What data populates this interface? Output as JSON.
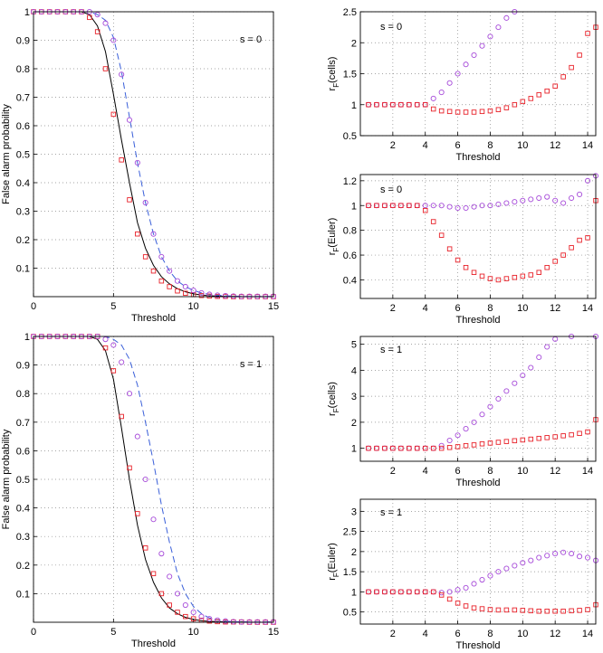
{
  "chart_data": [
    {
      "type": "line",
      "xlabel": "Threshold",
      "ylabel": "False alarm probability",
      "annotation": "s = 0",
      "xlim": [
        0,
        15
      ],
      "ylim": [
        0,
        1
      ],
      "xticks": [
        0,
        5,
        10,
        15
      ],
      "yticks": [
        0.1,
        0.2,
        0.3,
        0.4,
        0.5,
        0.6,
        0.7,
        0.8,
        0.9,
        1
      ],
      "grid": true,
      "x": [
        0,
        0.5,
        1,
        1.5,
        2,
        2.5,
        3,
        3.5,
        4,
        4.5,
        5,
        5.5,
        6,
        6.5,
        7,
        7.5,
        8,
        8.5,
        9,
        9.5,
        10,
        10.5,
        11,
        11.5,
        12,
        12.5,
        13,
        13.5,
        14,
        14.5,
        15
      ],
      "series": [
        {
          "style": "solid",
          "color": "#000000",
          "values": [
            1,
            1,
            1,
            1,
            1,
            1,
            1,
            0.99,
            0.95,
            0.86,
            0.71,
            0.55,
            0.4,
            0.26,
            0.17,
            0.11,
            0.07,
            0.045,
            0.028,
            0.017,
            0.01,
            0.006,
            0.003,
            0.002,
            0.001,
            0.001,
            0,
            0,
            0,
            0,
            0
          ]
        },
        {
          "style": "dashed",
          "color": "#3a5fd9",
          "values": [
            1,
            1,
            1,
            1,
            1,
            1,
            1,
            1,
            0.99,
            0.97,
            0.91,
            0.79,
            0.63,
            0.47,
            0.33,
            0.22,
            0.14,
            0.09,
            0.055,
            0.035,
            0.022,
            0.013,
            0.008,
            0.005,
            0.003,
            0.002,
            0.001,
            0.001,
            0.001,
            0.001,
            0.001
          ]
        },
        {
          "style": "square",
          "color": "#e8222a",
          "values": [
            1,
            1,
            1,
            1,
            1,
            1,
            1,
            0.98,
            0.93,
            0.8,
            0.64,
            0.48,
            0.34,
            0.22,
            0.14,
            0.09,
            0.055,
            0.035,
            0.02,
            0.012,
            0.007,
            0.004,
            0.002,
            0.001,
            0.001,
            0,
            0,
            0,
            0,
            0,
            0
          ]
        },
        {
          "style": "circle",
          "color": "#a64ad9",
          "values": [
            1,
            1,
            1,
            1,
            1,
            1,
            1,
            1,
            0.99,
            0.96,
            0.9,
            0.78,
            0.62,
            0.47,
            0.33,
            0.22,
            0.14,
            0.09,
            0.055,
            0.035,
            0.022,
            0.013,
            0.008,
            0.005,
            0.003,
            0.002,
            0.001,
            0.001,
            0.001,
            0.001,
            0.001
          ]
        }
      ]
    },
    {
      "type": "line",
      "xlabel": "Threshold",
      "ylabel": "False alarm probability",
      "annotation": "s = 1",
      "xlim": [
        0,
        15
      ],
      "ylim": [
        0,
        1
      ],
      "xticks": [
        0,
        5,
        10,
        15
      ],
      "yticks": [
        0.1,
        0.2,
        0.3,
        0.4,
        0.5,
        0.6,
        0.7,
        0.8,
        0.9,
        1
      ],
      "grid": true,
      "x": [
        0,
        0.5,
        1,
        1.5,
        2,
        2.5,
        3,
        3.5,
        4,
        4.5,
        5,
        5.5,
        6,
        6.5,
        7,
        7.5,
        8,
        8.5,
        9,
        9.5,
        10,
        10.5,
        11,
        11.5,
        12,
        12.5,
        13,
        13.5,
        14,
        14.5,
        15
      ],
      "series": [
        {
          "style": "solid",
          "color": "#000000",
          "values": [
            1,
            1,
            1,
            1,
            1,
            1,
            1,
            1,
            0.99,
            0.95,
            0.85,
            0.68,
            0.5,
            0.34,
            0.22,
            0.14,
            0.085,
            0.05,
            0.03,
            0.017,
            0.01,
            0.005,
            0.003,
            0.002,
            0.001,
            0.001,
            0.001,
            0,
            0,
            0,
            0
          ]
        },
        {
          "style": "dashed",
          "color": "#3a5fd9",
          "values": [
            1,
            1,
            1,
            1,
            1,
            1,
            1,
            1,
            1,
            1,
            0.99,
            0.97,
            0.92,
            0.83,
            0.7,
            0.56,
            0.41,
            0.28,
            0.17,
            0.1,
            0.055,
            0.03,
            0.015,
            0.008,
            0.004,
            0.002,
            0.001,
            0.001,
            0.001,
            0.001,
            0.001
          ]
        },
        {
          "style": "square",
          "color": "#e8222a",
          "values": [
            1,
            1,
            1,
            1,
            1,
            1,
            1,
            1,
            1,
            0.96,
            0.88,
            0.72,
            0.54,
            0.38,
            0.26,
            0.17,
            0.1,
            0.06,
            0.035,
            0.02,
            0.012,
            0.007,
            0.004,
            0.002,
            0.001,
            0.001,
            0.001,
            0,
            0,
            0,
            0
          ]
        },
        {
          "style": "circle",
          "color": "#a64ad9",
          "values": [
            1,
            1,
            1,
            1,
            1,
            1,
            1,
            1,
            1,
            0.99,
            0.97,
            0.91,
            0.8,
            0.65,
            0.5,
            0.36,
            0.24,
            0.16,
            0.1,
            0.06,
            0.035,
            0.02,
            0.012,
            0.007,
            0.004,
            0.002,
            0.001,
            0.001,
            0.001,
            0.001,
            0.001
          ]
        }
      ]
    },
    {
      "type": "scatter",
      "xlabel": "Threshold",
      "ylabel": {
        "text": "r",
        "subscript": "F",
        "suffix": "(cells)"
      },
      "annotation": "s = 0",
      "xlim": [
        0,
        14.5
      ],
      "ylim": [
        0.5,
        2.5
      ],
      "xticks": [
        2,
        4,
        6,
        8,
        10,
        12,
        14
      ],
      "yticks": [
        0.5,
        1,
        1.5,
        2,
        2.5
      ],
      "grid": true,
      "x": [
        0.5,
        1,
        1.5,
        2,
        2.5,
        3,
        3.5,
        4,
        4.5,
        5,
        5.5,
        6,
        6.5,
        7,
        7.5,
        8,
        8.5,
        9,
        9.5,
        10,
        10.5,
        11,
        11.5,
        12,
        12.5,
        13,
        13.5,
        14,
        14.5
      ],
      "series": [
        {
          "style": "circle",
          "color": "#a64ad9",
          "values": [
            1,
            1,
            1,
            1,
            1,
            1,
            1,
            1,
            1.1,
            1.2,
            1.35,
            1.5,
            1.65,
            1.8,
            1.95,
            2.1,
            2.25,
            2.4,
            2.5,
            null,
            null,
            null,
            null,
            null,
            null,
            null,
            null,
            null,
            null
          ]
        },
        {
          "style": "square",
          "color": "#e8222a",
          "values": [
            1,
            1,
            1,
            1,
            1,
            1,
            1,
            1,
            0.93,
            0.9,
            0.89,
            0.88,
            0.88,
            0.88,
            0.89,
            0.9,
            0.92,
            0.95,
            1.0,
            1.05,
            1.1,
            1.16,
            1.22,
            1.3,
            1.45,
            1.6,
            1.8,
            2.15,
            2.25
          ]
        }
      ]
    },
    {
      "type": "scatter",
      "xlabel": "Threshold",
      "ylabel": {
        "text": "r",
        "subscript": "F",
        "suffix": "(Euler)"
      },
      "annotation": "s = 0",
      "xlim": [
        0,
        14.5
      ],
      "ylim": [
        0.25,
        1.25
      ],
      "xticks": [
        2,
        4,
        6,
        8,
        10,
        12,
        14
      ],
      "yticks": [
        0.4,
        0.6,
        0.8,
        1,
        1.2
      ],
      "grid": true,
      "x": [
        0.5,
        1,
        1.5,
        2,
        2.5,
        3,
        3.5,
        4,
        4.5,
        5,
        5.5,
        6,
        6.5,
        7,
        7.5,
        8,
        8.5,
        9,
        9.5,
        10,
        10.5,
        11,
        11.5,
        12,
        12.5,
        13,
        13.5,
        14,
        14.5
      ],
      "series": [
        {
          "style": "circle",
          "color": "#a64ad9",
          "values": [
            1,
            1,
            1,
            1,
            1,
            1,
            1,
            1,
            1,
            1,
            0.99,
            0.98,
            0.98,
            0.99,
            1.0,
            1.0,
            1.01,
            1.02,
            1.03,
            1.04,
            1.05,
            1.06,
            1.07,
            1.04,
            1.02,
            1.06,
            1.09,
            1.2,
            1.24
          ]
        },
        {
          "style": "square",
          "color": "#e8222a",
          "values": [
            1,
            1,
            1,
            1,
            1,
            1,
            1,
            0.96,
            0.87,
            0.76,
            0.65,
            0.56,
            0.5,
            0.46,
            0.43,
            0.41,
            0.4,
            0.41,
            0.42,
            0.43,
            0.44,
            0.46,
            0.5,
            0.55,
            0.6,
            0.66,
            0.72,
            0.74,
            1.04
          ]
        }
      ]
    },
    {
      "type": "scatter",
      "xlabel": "Threshold",
      "ylabel": {
        "text": "r",
        "subscript": "F",
        "suffix": "(cells)"
      },
      "annotation": "s = 1",
      "xlim": [
        0,
        14.5
      ],
      "ylim": [
        0.5,
        5.3
      ],
      "xticks": [
        2,
        4,
        6,
        8,
        10,
        12,
        14
      ],
      "yticks": [
        1,
        2,
        3,
        4,
        5
      ],
      "grid": true,
      "x": [
        0.5,
        1,
        1.5,
        2,
        2.5,
        3,
        3.5,
        4,
        4.5,
        5,
        5.5,
        6,
        6.5,
        7,
        7.5,
        8,
        8.5,
        9,
        9.5,
        10,
        10.5,
        11,
        11.5,
        12,
        12.5,
        13,
        13.5,
        14,
        14.5
      ],
      "series": [
        {
          "style": "circle",
          "color": "#a64ad9",
          "values": [
            1,
            1,
            1,
            1,
            1,
            1,
            1,
            1,
            1,
            1.1,
            1.3,
            1.5,
            1.75,
            2.0,
            2.3,
            2.6,
            2.9,
            3.2,
            3.5,
            3.8,
            4.1,
            4.5,
            4.9,
            5.2,
            null,
            5.3,
            null,
            null,
            5.3
          ]
        },
        {
          "style": "square",
          "color": "#e8222a",
          "values": [
            1,
            1,
            1,
            1,
            1,
            1,
            1,
            1,
            1,
            1,
            1.03,
            1.06,
            1.1,
            1.13,
            1.17,
            1.2,
            1.23,
            1.26,
            1.29,
            1.32,
            1.35,
            1.38,
            1.41,
            1.44,
            1.48,
            1.52,
            1.57,
            1.63,
            2.1
          ]
        }
      ]
    },
    {
      "type": "scatter",
      "xlabel": "Threshold",
      "ylabel": {
        "text": "r",
        "subscript": "F",
        "suffix": "(Euler)"
      },
      "annotation": "s = 1",
      "xlim": [
        0,
        14.5
      ],
      "ylim": [
        0.2,
        3.3
      ],
      "xticks": [
        2,
        4,
        6,
        8,
        10,
        12,
        14
      ],
      "yticks": [
        0.5,
        1,
        1.5,
        2,
        2.5,
        3
      ],
      "grid": true,
      "x": [
        0.5,
        1,
        1.5,
        2,
        2.5,
        3,
        3.5,
        4,
        4.5,
        5,
        5.5,
        6,
        6.5,
        7,
        7.5,
        8,
        8.5,
        9,
        9.5,
        10,
        10.5,
        11,
        11.5,
        12,
        12.5,
        13,
        13.5,
        14,
        14.5
      ],
      "series": [
        {
          "style": "circle",
          "color": "#a64ad9",
          "values": [
            1,
            1,
            1,
            1,
            1,
            1,
            1,
            1,
            1,
            0.98,
            1.0,
            1.05,
            1.1,
            1.2,
            1.3,
            1.4,
            1.5,
            1.58,
            1.65,
            1.72,
            1.78,
            1.85,
            1.9,
            1.95,
            1.98,
            1.95,
            1.88,
            1.85,
            1.78
          ]
        },
        {
          "style": "square",
          "color": "#e8222a",
          "values": [
            1,
            1,
            1,
            1,
            1,
            1,
            1,
            1,
            1,
            0.92,
            0.82,
            0.72,
            0.65,
            0.6,
            0.58,
            0.56,
            0.55,
            0.55,
            0.55,
            0.54,
            0.53,
            0.52,
            0.52,
            0.52,
            0.52,
            0.53,
            0.54,
            0.56,
            0.68
          ]
        }
      ]
    }
  ]
}
